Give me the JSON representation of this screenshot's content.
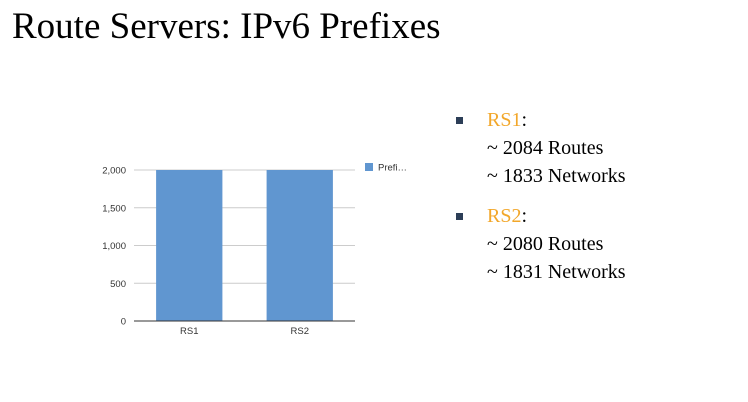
{
  "slide": {
    "title": "Route Servers: IPv6 Prefixes"
  },
  "chart_data": {
    "type": "bar",
    "categories": [
      "RS1",
      "RS2"
    ],
    "series": [
      {
        "name": "Prefi…",
        "values": [
          2084,
          2080
        ]
      }
    ],
    "ylim": [
      0,
      2000
    ],
    "yticks": [
      "0",
      "500",
      "1,000",
      "1,500",
      "2,000"
    ],
    "ytick_values": [
      0,
      500,
      1000,
      1500,
      2000
    ],
    "title": "",
    "xlabel": "",
    "ylabel": "",
    "grid": true,
    "legend": "right",
    "bar_color": "#6096d0"
  },
  "bullets": [
    {
      "name": "RS1",
      "suffix": ":",
      "lines": [
        "~ 2084 Routes",
        "~ 1833 Networks"
      ]
    },
    {
      "name": "RS2",
      "suffix": ":",
      "lines": [
        "~ 2080 Routes",
        "~ 1831 Networks"
      ]
    }
  ],
  "colors": {
    "accent": "#f2a72a",
    "bullet": "#2c3e57"
  }
}
